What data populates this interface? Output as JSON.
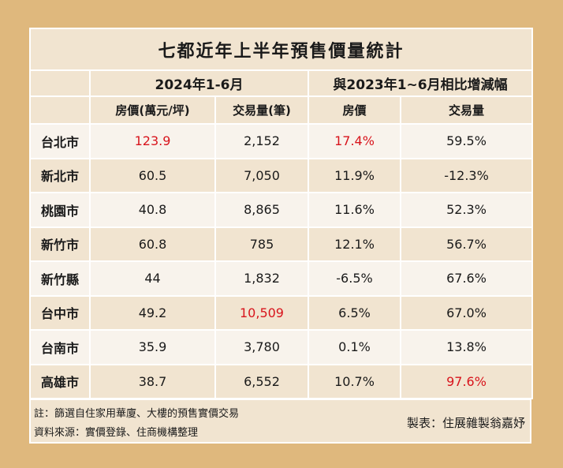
{
  "title": "七都近年上半年預售價量統計",
  "header": {
    "period": "2024年1-6月",
    "comparison": "與2023年1~6月相比增減幅",
    "cols": [
      "房價(萬元/坪)",
      "交易量(筆)",
      "房價",
      "交易量"
    ]
  },
  "rows": [
    {
      "city": "台北市",
      "price": "123.9",
      "volume": "2,152",
      "price_chg": "17.4%",
      "volume_chg": "59.5%",
      "highlight": [
        "price",
        "price_chg"
      ]
    },
    {
      "city": "新北市",
      "price": "60.5",
      "volume": "7,050",
      "price_chg": "11.9%",
      "volume_chg": "-12.3%",
      "highlight": []
    },
    {
      "city": "桃園市",
      "price": "40.8",
      "volume": "8,865",
      "price_chg": "11.6%",
      "volume_chg": "52.3%",
      "highlight": []
    },
    {
      "city": "新竹市",
      "price": "60.8",
      "volume": "785",
      "price_chg": "12.1%",
      "volume_chg": "56.7%",
      "highlight": []
    },
    {
      "city": "新竹縣",
      "price": "44",
      "volume": "1,832",
      "price_chg": "-6.5%",
      "volume_chg": "67.6%",
      "highlight": []
    },
    {
      "city": "台中市",
      "price": "49.2",
      "volume": "10,509",
      "price_chg": "6.5%",
      "volume_chg": "67.0%",
      "highlight": [
        "volume"
      ]
    },
    {
      "city": "台南市",
      "price": "35.9",
      "volume": "3,780",
      "price_chg": "0.1%",
      "volume_chg": "13.8%",
      "highlight": []
    },
    {
      "city": "高雄市",
      "price": "38.7",
      "volume": "6,552",
      "price_chg": "10.7%",
      "volume_chg": "97.6%",
      "highlight": [
        "volume_chg"
      ]
    }
  ],
  "footer": {
    "note": "註：篩選自住家用華廈、大樓的預售實價交易",
    "source": "資料來源：實價登錄、住商機構整理",
    "credit": "製表：住展雜製翁嘉妤"
  },
  "colors": {
    "highlight": "#d8141c",
    "background": "#dfb87d"
  }
}
